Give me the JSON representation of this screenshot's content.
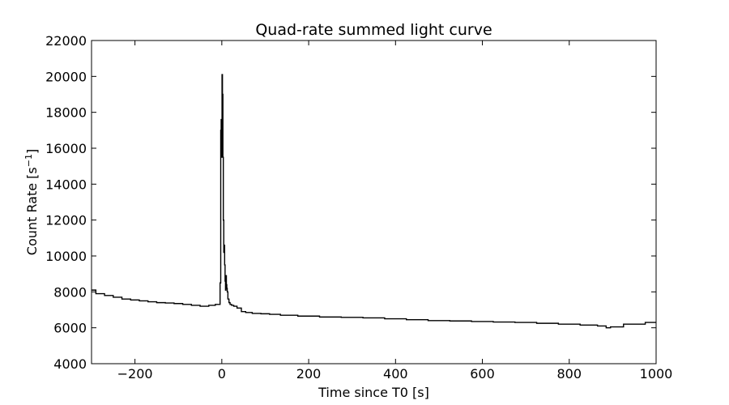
{
  "chart_data": {
    "type": "line",
    "title": "Quad-rate summed light curve",
    "xlabel": "Time since T0 [s]",
    "ylabel_main": "Count Rate [s",
    "ylabel_sup": "−1",
    "ylabel_close": "]",
    "xlim": [
      -300,
      1000
    ],
    "ylim": [
      4000,
      22000
    ],
    "xticks": [
      -200,
      0,
      200,
      400,
      600,
      800,
      1000
    ],
    "xtick_labels": [
      "−200",
      "0",
      "200",
      "400",
      "600",
      "800",
      "1000"
    ],
    "yticks": [
      4000,
      6000,
      8000,
      10000,
      12000,
      14000,
      16000,
      18000,
      20000,
      22000
    ],
    "ytick_labels": [
      "4000",
      "6000",
      "8000",
      "10000",
      "12000",
      "14000",
      "16000",
      "18000",
      "20000",
      "22000"
    ],
    "grid": false,
    "line_color": "#000000",
    "series": [
      {
        "x": [
          -300,
          -280,
          -260,
          -240,
          -220,
          -200,
          -180,
          -160,
          -140,
          -120,
          -100,
          -80,
          -60,
          -40,
          -20,
          -10,
          -5,
          -3,
          -2,
          -1,
          0,
          1,
          2,
          3,
          4,
          5,
          6,
          7,
          8,
          9,
          10,
          11,
          12,
          13,
          15,
          18,
          20,
          25,
          30,
          40,
          50,
          60,
          80,
          100,
          120,
          150,
          200,
          250,
          300,
          350,
          400,
          450,
          500,
          550,
          600,
          650,
          700,
          750,
          800,
          850,
          880,
          890,
          900,
          950,
          1000
        ],
        "y": [
          8100,
          7900,
          7800,
          7700,
          7600,
          7550,
          7500,
          7450,
          7400,
          7380,
          7350,
          7300,
          7250,
          7200,
          7250,
          7300,
          7300,
          8500,
          17000,
          17600,
          15500,
          20100,
          19000,
          15500,
          12000,
          10200,
          10600,
          9500,
          8600,
          8100,
          8900,
          8400,
          8200,
          8000,
          7600,
          7400,
          7300,
          7250,
          7200,
          7100,
          6900,
          6850,
          6800,
          6780,
          6750,
          6700,
          6650,
          6600,
          6580,
          6550,
          6500,
          6450,
          6400,
          6380,
          6350,
          6320,
          6300,
          6250,
          6200,
          6150,
          6100,
          6000,
          6050,
          6200,
          6300
        ]
      }
    ]
  }
}
